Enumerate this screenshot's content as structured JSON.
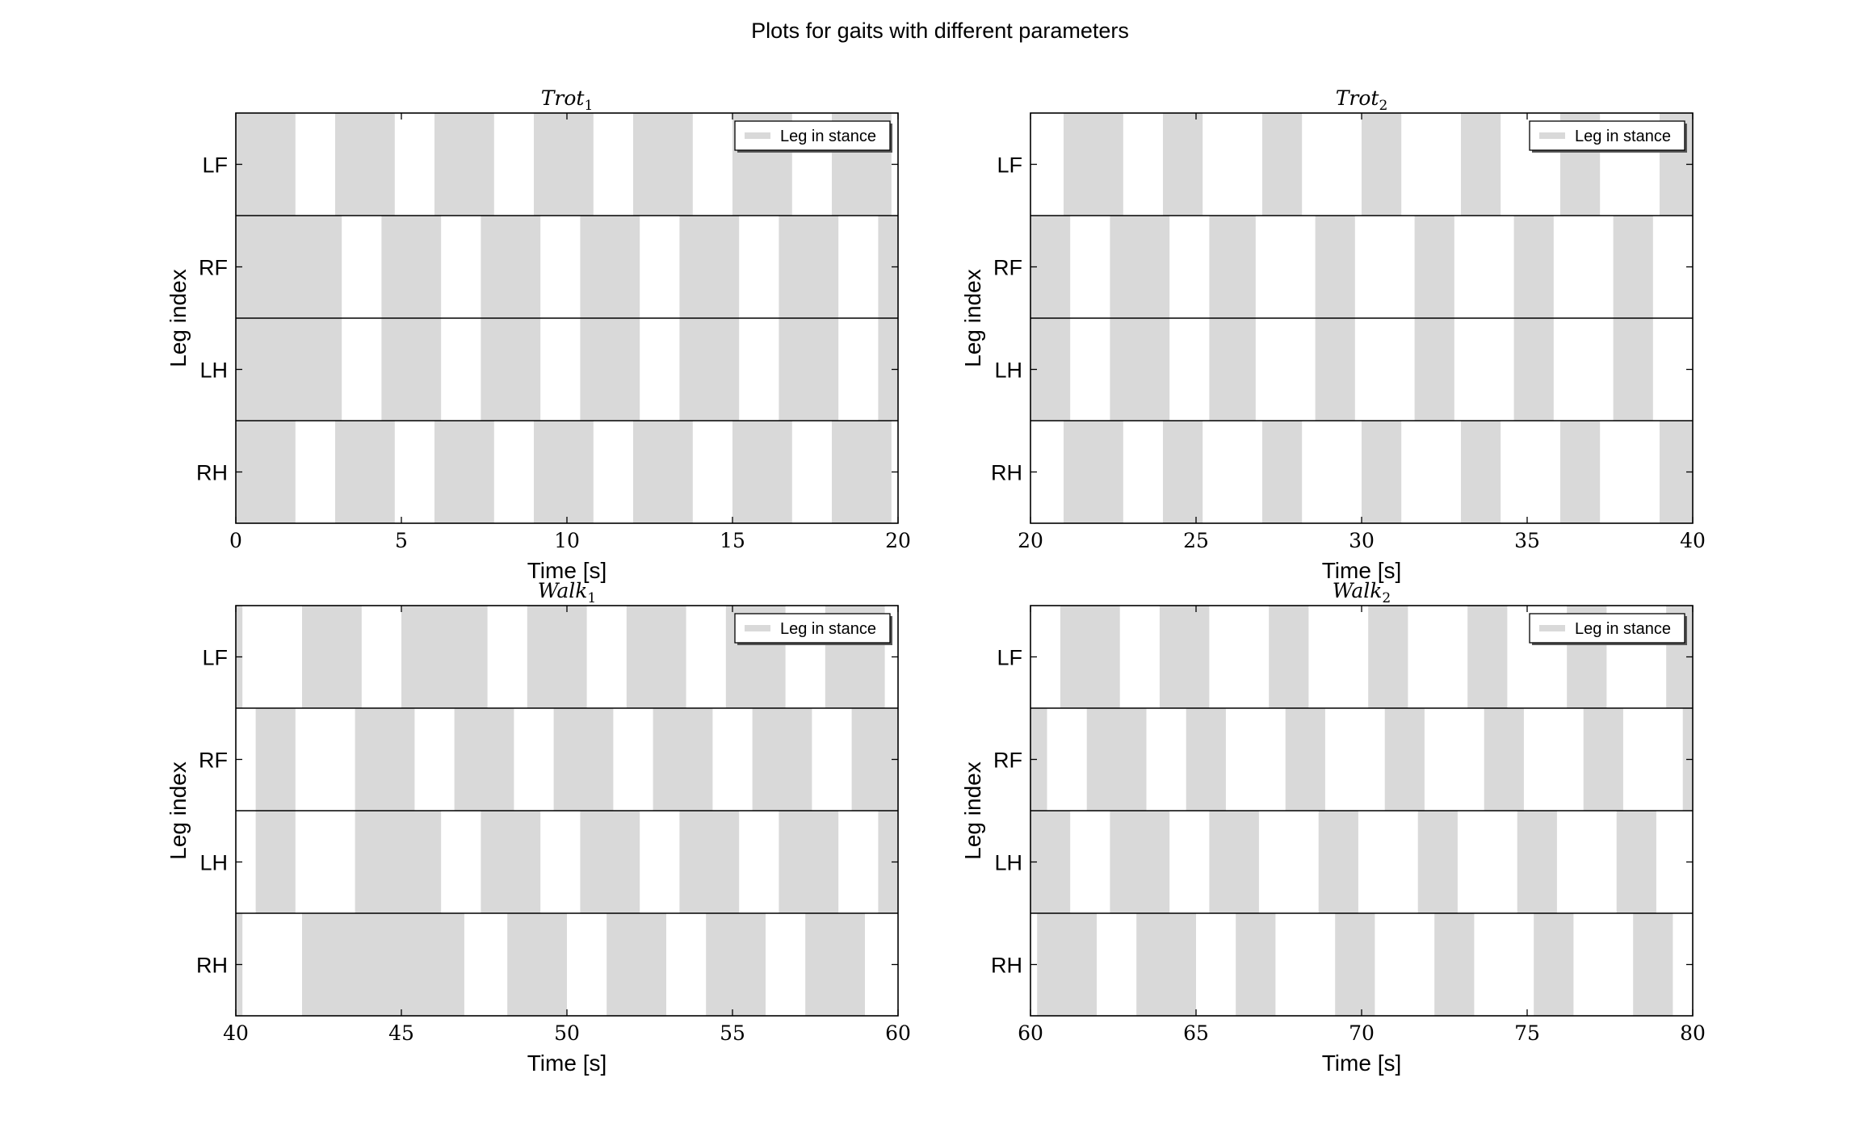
{
  "figure": {
    "suptitle": "Plots for gaits with different parameters"
  },
  "colors": {
    "stance": "#d9d9d9",
    "axes": "#000000",
    "background": "#ffffff"
  },
  "chart_data": [
    {
      "type": "gantt",
      "title_main": "Trot",
      "title_sub": "1",
      "xlabel": "Time [s]",
      "ylabel": "Leg index",
      "xlim": [
        0,
        20
      ],
      "xticks": [
        0,
        5,
        10,
        15,
        20
      ],
      "legend": {
        "label": "Leg in stance",
        "placement": "top-right"
      },
      "legs": [
        {
          "name": "LF",
          "stance": [
            [
              0,
              1.8
            ],
            [
              3.0,
              4.8
            ],
            [
              6.0,
              7.8
            ],
            [
              9.0,
              10.8
            ],
            [
              12.0,
              13.8
            ],
            [
              15.0,
              16.8
            ],
            [
              18.0,
              19.8
            ]
          ]
        },
        {
          "name": "RF",
          "stance": [
            [
              0,
              3.2
            ],
            [
              4.4,
              6.2
            ],
            [
              7.4,
              9.2
            ],
            [
              10.4,
              12.2
            ],
            [
              13.4,
              15.2
            ],
            [
              16.4,
              18.2
            ],
            [
              19.4,
              20
            ]
          ]
        },
        {
          "name": "LH",
          "stance": [
            [
              0,
              3.2
            ],
            [
              4.4,
              6.2
            ],
            [
              7.4,
              9.2
            ],
            [
              10.4,
              12.2
            ],
            [
              13.4,
              15.2
            ],
            [
              16.4,
              18.2
            ],
            [
              19.4,
              20
            ]
          ]
        },
        {
          "name": "RH",
          "stance": [
            [
              0,
              1.8
            ],
            [
              3.0,
              4.8
            ],
            [
              6.0,
              7.8
            ],
            [
              9.0,
              10.8
            ],
            [
              12.0,
              13.8
            ],
            [
              15.0,
              16.8
            ],
            [
              18.0,
              19.8
            ]
          ]
        }
      ]
    },
    {
      "type": "gantt",
      "title_main": "Trot",
      "title_sub": "2",
      "xlabel": "Time [s]",
      "ylabel": "Leg index",
      "xlim": [
        20,
        40
      ],
      "xticks": [
        20,
        25,
        30,
        35,
        40
      ],
      "legend": {
        "label": "Leg in stance",
        "placement": "top-right"
      },
      "legs": [
        {
          "name": "LF",
          "stance": [
            [
              21.0,
              22.8
            ],
            [
              24.0,
              25.2
            ],
            [
              27.0,
              28.2
            ],
            [
              30.0,
              31.2
            ],
            [
              33.0,
              34.2
            ],
            [
              36.0,
              37.2
            ],
            [
              39.0,
              40
            ]
          ]
        },
        {
          "name": "RF",
          "stance": [
            [
              20,
              21.2
            ],
            [
              22.4,
              24.2
            ],
            [
              25.4,
              26.8
            ],
            [
              28.6,
              29.8
            ],
            [
              31.6,
              32.8
            ],
            [
              34.6,
              35.8
            ],
            [
              37.6,
              38.8
            ]
          ]
        },
        {
          "name": "LH",
          "stance": [
            [
              20,
              21.2
            ],
            [
              22.4,
              24.2
            ],
            [
              25.4,
              26.8
            ],
            [
              28.6,
              29.8
            ],
            [
              31.6,
              32.8
            ],
            [
              34.6,
              35.8
            ],
            [
              37.6,
              38.8
            ]
          ]
        },
        {
          "name": "RH",
          "stance": [
            [
              21.0,
              22.8
            ],
            [
              24.0,
              25.2
            ],
            [
              27.0,
              28.2
            ],
            [
              30.0,
              31.2
            ],
            [
              33.0,
              34.2
            ],
            [
              36.0,
              37.2
            ],
            [
              39.0,
              40
            ]
          ]
        }
      ]
    },
    {
      "type": "gantt",
      "title_main": "Walk",
      "title_sub": "1",
      "xlabel": "Time [s]",
      "ylabel": "Leg index",
      "xlim": [
        40,
        60
      ],
      "xticks": [
        40,
        45,
        50,
        55,
        60
      ],
      "legend": {
        "label": "Leg in stance",
        "placement": "top-right"
      },
      "legs": [
        {
          "name": "LF",
          "stance": [
            [
              40,
              40.2
            ],
            [
              42.0,
              43.8
            ],
            [
              45.0,
              47.6
            ],
            [
              48.8,
              50.6
            ],
            [
              51.8,
              53.6
            ],
            [
              54.8,
              56.6
            ],
            [
              57.8,
              59.6
            ]
          ]
        },
        {
          "name": "RF",
          "stance": [
            [
              40.6,
              41.8
            ],
            [
              43.6,
              45.4
            ],
            [
              46.6,
              48.4
            ],
            [
              49.6,
              51.4
            ],
            [
              52.6,
              54.4
            ],
            [
              55.6,
              57.4
            ],
            [
              58.6,
              60
            ]
          ]
        },
        {
          "name": "LH",
          "stance": [
            [
              40.6,
              41.8
            ],
            [
              43.6,
              46.2
            ],
            [
              47.4,
              49.2
            ],
            [
              50.4,
              52.2
            ],
            [
              53.4,
              55.2
            ],
            [
              56.4,
              58.2
            ],
            [
              59.4,
              60
            ]
          ]
        },
        {
          "name": "RH",
          "stance": [
            [
              40,
              40.2
            ],
            [
              42.0,
              46.9
            ],
            [
              48.2,
              50.0
            ],
            [
              51.2,
              53.0
            ],
            [
              54.2,
              56.0
            ],
            [
              57.2,
              59.0
            ]
          ]
        }
      ]
    },
    {
      "type": "gantt",
      "title_main": "Walk",
      "title_sub": "2",
      "xlabel": "Time [s]",
      "ylabel": "Leg index",
      "xlim": [
        60,
        80
      ],
      "xticks": [
        60,
        65,
        70,
        75,
        80
      ],
      "legend": {
        "label": "Leg in stance",
        "placement": "top-right"
      },
      "legs": [
        {
          "name": "LF",
          "stance": [
            [
              60.9,
              62.7
            ],
            [
              63.9,
              65.4
            ],
            [
              67.2,
              68.4
            ],
            [
              70.2,
              71.4
            ],
            [
              73.2,
              74.4
            ],
            [
              76.2,
              77.4
            ],
            [
              79.2,
              80
            ]
          ]
        },
        {
          "name": "RF",
          "stance": [
            [
              60,
              60.5
            ],
            [
              61.7,
              63.5
            ],
            [
              64.7,
              65.9
            ],
            [
              67.7,
              68.9
            ],
            [
              70.7,
              71.9
            ],
            [
              73.7,
              74.9
            ],
            [
              76.7,
              77.9
            ],
            [
              79.7,
              80
            ]
          ]
        },
        {
          "name": "LH",
          "stance": [
            [
              60,
              61.2
            ],
            [
              62.4,
              64.2
            ],
            [
              65.4,
              66.9
            ],
            [
              68.7,
              69.9
            ],
            [
              71.7,
              72.9
            ],
            [
              74.7,
              75.9
            ],
            [
              77.7,
              78.9
            ]
          ]
        },
        {
          "name": "RH",
          "stance": [
            [
              60.2,
              62.0
            ],
            [
              63.2,
              65.0
            ],
            [
              66.2,
              67.4
            ],
            [
              69.2,
              70.4
            ],
            [
              72.2,
              73.4
            ],
            [
              75.2,
              76.4
            ],
            [
              78.2,
              79.4
            ]
          ]
        }
      ]
    }
  ]
}
